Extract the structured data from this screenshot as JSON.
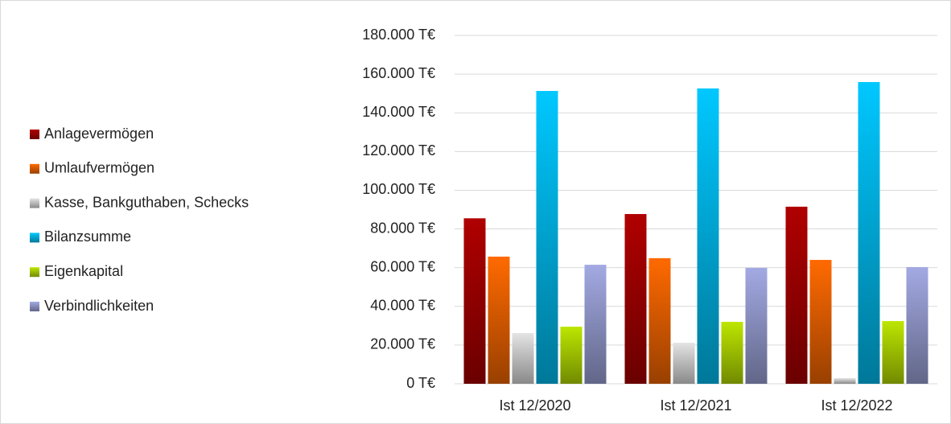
{
  "chart_data": {
    "type": "bar",
    "categories": [
      "Ist 12/2020",
      "Ist 12/2021",
      "Ist 12/2022"
    ],
    "series": [
      {
        "name": "Anlagevermögen",
        "color": "#b00000",
        "values": [
          85500,
          87700,
          91500
        ]
      },
      {
        "name": "Umlaufvermögen",
        "color": "#ff6a00",
        "values": [
          65700,
          64900,
          64000
        ]
      },
      {
        "name": "Kasse, Bankguthaben, Schecks",
        "color": "#e4e4e4",
        "values": [
          26200,
          21200,
          2900
        ]
      },
      {
        "name": "Bilanzsumme",
        "color": "#00c8ff",
        "values": [
          151300,
          152600,
          155900
        ]
      },
      {
        "name": "Eigenkapital",
        "color": "#bde600",
        "values": [
          29500,
          32000,
          32400
        ]
      },
      {
        "name": "Verbindlichkeiten",
        "color": "#a3aae3",
        "values": [
          61500,
          59900,
          60300
        ]
      }
    ],
    "ylim": [
      0,
      180000
    ],
    "yticks": [
      {
        "value": 0,
        "label": "0 T€"
      },
      {
        "value": 20000,
        "label": "20.000 T€"
      },
      {
        "value": 40000,
        "label": "40.000 T€"
      },
      {
        "value": 60000,
        "label": "60.000 T€"
      },
      {
        "value": 80000,
        "label": "80.000 T€"
      },
      {
        "value": 100000,
        "label": "100.000 T€"
      },
      {
        "value": 120000,
        "label": "120.000 T€"
      },
      {
        "value": 140000,
        "label": "140.000 T€"
      },
      {
        "value": 160000,
        "label": "160.000 T€"
      },
      {
        "value": 180000,
        "label": "180.000 T€"
      }
    ],
    "grid": true,
    "legend": "left"
  }
}
